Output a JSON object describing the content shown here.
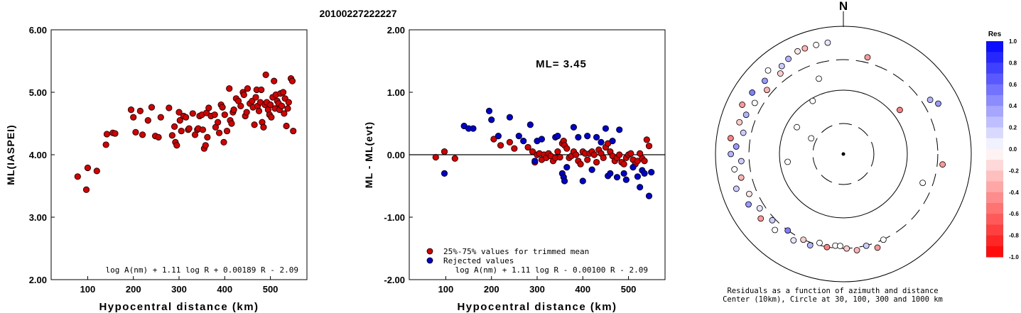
{
  "title": "20100227222227",
  "chart_data": [
    {
      "type": "scatter",
      "title": "",
      "xlabel": "Hypocentral distance (km)",
      "ylabel": "ML(IASPEI)",
      "xlim": [
        20,
        580
      ],
      "ylim": [
        2.0,
        6.0
      ],
      "x_ticks": [
        "100",
        "200",
        "300",
        "400",
        "500"
      ],
      "y_ticks": [
        "2.00",
        "3.00",
        "4.00",
        "5.00",
        "6.00"
      ],
      "formula": "log A(nm) + 1.11 log R + 0.00189 R - 2.09",
      "colors": {
        "points": "#d40000"
      },
      "series": [
        {
          "x": [
            78,
            97,
            100,
            120,
            140,
            142,
            155,
            160,
            195,
            200,
            205,
            215,
            220,
            232,
            240,
            248,
            255,
            260,
            278,
            285,
            290,
            292,
            295,
            300,
            302,
            305,
            310,
            315,
            320,
            322,
            330,
            335,
            340,
            342,
            345,
            350,
            352,
            355,
            358,
            360,
            362,
            365,
            370,
            378,
            380,
            385,
            388,
            392,
            395,
            398,
            400,
            405,
            410,
            412,
            415,
            418,
            420,
            425,
            430,
            435,
            440,
            442,
            445,
            448,
            450,
            455,
            460,
            462,
            465,
            468,
            470,
            472,
            475,
            478,
            480,
            482,
            485,
            488,
            490,
            492,
            495,
            498,
            500,
            502,
            505,
            508,
            510,
            512,
            515,
            518,
            520,
            522,
            525,
            528,
            530,
            532,
            535,
            538,
            540,
            545,
            548,
            550
          ],
          "y": [
            3.65,
            3.44,
            3.79,
            3.74,
            4.16,
            4.33,
            4.35,
            4.34,
            4.72,
            4.6,
            4.36,
            4.7,
            4.32,
            4.55,
            4.76,
            4.3,
            4.28,
            4.6,
            4.75,
            4.31,
            4.45,
            4.2,
            4.15,
            4.68,
            4.55,
            4.38,
            4.62,
            4.6,
            4.4,
            4.42,
            4.66,
            4.32,
            4.4,
            4.42,
            4.62,
            4.64,
            4.4,
            4.1,
            4.15,
            4.67,
            4.28,
            4.75,
            4.62,
            4.64,
            4.44,
            4.52,
            4.35,
            4.8,
            4.76,
            4.2,
            4.64,
            4.38,
            5.06,
            4.55,
            4.5,
            4.68,
            4.72,
            4.9,
            4.86,
            4.78,
            5.0,
            4.96,
            4.62,
            4.68,
            5.06,
            4.82,
            4.86,
            4.76,
            4.48,
            4.92,
            5.04,
            4.78,
            4.7,
            4.84,
            5.04,
            4.52,
            4.44,
            4.8,
            5.28,
            4.84,
            4.72,
            4.64,
            4.8,
            4.6,
            4.92,
            5.18,
            4.74,
            4.96,
            4.86,
            4.82,
            4.72,
            4.98,
            4.78,
            5.0,
            4.66,
            4.9,
            4.46,
            4.74,
            4.84,
            5.22,
            5.18,
            4.38
          ]
        }
      ]
    },
    {
      "type": "scatter",
      "title": "",
      "xlabel": "Hypocentral distance (km)",
      "ylabel": "ML - ML(evt)",
      "xlim": [
        20,
        580
      ],
      "ylim": [
        -2.0,
        2.0
      ],
      "x_ticks": [
        "100",
        "200",
        "300",
        "400",
        "500"
      ],
      "y_ticks": [
        "-2.00",
        "-1.00",
        "0.00",
        "1.00",
        "2.00"
      ],
      "annotation": "ML= 3.45",
      "formula": "log A(nm) + 1.11 log R - 0.00100 R - 2.09",
      "legend": {
        "position": "bottom-left",
        "entries": [
          "25%-75% values for trimmed mean",
          "Rejected values"
        ]
      },
      "colors": {
        "trimmed": "#d40000",
        "rejected": "#0000cc"
      },
      "series": [
        {
          "name": "25%-75% values for trimmed mean",
          "x": [
            78,
            97,
            120,
            205,
            220,
            240,
            250,
            280,
            290,
            295,
            300,
            305,
            310,
            315,
            320,
            325,
            330,
            335,
            340,
            345,
            350,
            355,
            358,
            360,
            365,
            370,
            375,
            380,
            385,
            390,
            395,
            400,
            405,
            410,
            415,
            420,
            425,
            430,
            435,
            440,
            445,
            450,
            455,
            460,
            465,
            470,
            475,
            480,
            485,
            490,
            495,
            500,
            505,
            510,
            515,
            520,
            525,
            530,
            535,
            540,
            545
          ],
          "y": [
            -0.04,
            0.05,
            -0.06,
            0.25,
            0.15,
            0.2,
            0.1,
            0.12,
            0.05,
            -0.12,
            0.0,
            0.02,
            -0.08,
            0.0,
            -0.05,
            0.02,
            -0.02,
            -0.1,
            -0.05,
            0.05,
            -0.04,
            0.18,
            0.22,
            0.15,
            0.1,
            -0.05,
            -0.02,
            0.05,
            0.0,
            -0.1,
            -0.15,
            0.05,
            0.02,
            -0.08,
            0.02,
            0.05,
            0.0,
            -0.12,
            0.08,
            0.02,
            -0.05,
            0.12,
            0.18,
            0.05,
            -0.02,
            -0.1,
            -0.05,
            0.0,
            -0.12,
            -0.15,
            -0.05,
            0.0,
            0.02,
            -0.08,
            -0.15,
            -0.1,
            0.02,
            -0.06,
            -0.1,
            0.24,
            0.14
          ]
        },
        {
          "name": "Rejected values",
          "x": [
            97,
            140,
            150,
            160,
            195,
            200,
            215,
            240,
            260,
            270,
            285,
            295,
            300,
            310,
            340,
            345,
            355,
            358,
            360,
            365,
            380,
            390,
            400,
            410,
            420,
            430,
            440,
            450,
            455,
            460,
            465,
            475,
            480,
            490,
            495,
            510,
            520,
            525,
            530,
            535,
            545,
            550
          ],
          "y": [
            -0.3,
            0.46,
            0.42,
            0.42,
            0.7,
            0.56,
            0.3,
            0.6,
            0.3,
            0.22,
            0.48,
            -0.1,
            0.22,
            0.25,
            0.28,
            0.3,
            -0.3,
            -0.36,
            -0.42,
            -0.2,
            0.44,
            0.28,
            -0.42,
            0.3,
            -0.24,
            0.28,
            0.2,
            0.42,
            -0.34,
            -0.3,
            0.22,
            -0.36,
            0.4,
            -0.3,
            -0.4,
            -0.2,
            -0.35,
            -0.52,
            -0.25,
            -0.3,
            -0.66,
            -0.28
          ]
        }
      ]
    },
    {
      "type": "scatter",
      "title": "N",
      "caption_lines": [
        "Residuals as a function of azimuth and distance",
        "Center (10km), Circle at 30, 100, 300 and 1000 km"
      ],
      "colorbar": {
        "title": "Res",
        "ticks": [
          "1.0",
          "0.8",
          "0.6",
          "0.4",
          "0.2",
          "0.0",
          "-0.2",
          "-0.4",
          "-0.6",
          "-0.8",
          "-1.0"
        ],
        "range": [
          -1.0,
          1.0
        ]
      },
      "colors": {
        "positive": "#0000ff",
        "negative": "#ff0000",
        "zero": "#ffffff"
      },
      "rings": [
        {
          "radius_km": 30,
          "style": "dashed"
        },
        {
          "radius_km": 100,
          "style": "solid"
        },
        {
          "radius_km": 300,
          "style": "dashed"
        },
        {
          "radius_km": 1000,
          "style": "solid"
        }
      ],
      "points": [
        {
          "az": 352,
          "r": 0.88,
          "res": 0.1
        },
        {
          "az": 346,
          "r": 0.88,
          "res": 0.0
        },
        {
          "az": 340,
          "r": 0.88,
          "res": -0.3
        },
        {
          "az": 336,
          "r": 0.88,
          "res": -0.1
        },
        {
          "az": 330,
          "r": 0.86,
          "res": 0.3
        },
        {
          "az": 325,
          "r": 0.84,
          "res": 0.2
        },
        {
          "az": 322,
          "r": 0.8,
          "res": -0.2
        },
        {
          "az": 318,
          "r": 0.88,
          "res": 0.0
        },
        {
          "az": 313,
          "r": 0.84,
          "res": 0.4
        },
        {
          "az": 310,
          "r": 0.78,
          "res": -0.3
        },
        {
          "az": 304,
          "r": 0.86,
          "res": 0.5
        },
        {
          "az": 300,
          "r": 0.8,
          "res": 0.0
        },
        {
          "az": 296,
          "r": 0.88,
          "res": -0.4
        },
        {
          "az": 292,
          "r": 0.82,
          "res": 0.3
        },
        {
          "az": 287,
          "r": 0.85,
          "res": -0.2
        },
        {
          "az": 282,
          "r": 0.8,
          "res": 0.2
        },
        {
          "az": 278,
          "r": 0.89,
          "res": -0.5
        },
        {
          "az": 274,
          "r": 0.84,
          "res": 0.4
        },
        {
          "az": 270,
          "r": 0.88,
          "res": 0.3
        },
        {
          "az": 266,
          "r": 0.8,
          "res": 0.2
        },
        {
          "az": 262,
          "r": 0.86,
          "res": 0.0
        },
        {
          "az": 257,
          "r": 0.82,
          "res": -0.3
        },
        {
          "az": 252,
          "r": 0.88,
          "res": 0.2
        },
        {
          "az": 247,
          "r": 0.8,
          "res": -0.1
        },
        {
          "az": 242,
          "r": 0.84,
          "res": 0.4
        },
        {
          "az": 237,
          "r": 0.78,
          "res": 0.1
        },
        {
          "az": 232,
          "r": 0.82,
          "res": -0.4
        },
        {
          "az": 227,
          "r": 0.76,
          "res": 0.2
        },
        {
          "az": 222,
          "r": 0.8,
          "res": 0.0
        },
        {
          "az": 216,
          "r": 0.74,
          "res": 0.5
        },
        {
          "az": 210,
          "r": 0.78,
          "res": 0.1
        },
        {
          "az": 205,
          "r": 0.74,
          "res": -0.2
        },
        {
          "az": 200,
          "r": 0.76,
          "res": 0.3
        },
        {
          "az": 195,
          "r": 0.72,
          "res": 0.0
        },
        {
          "az": 190,
          "r": 0.74,
          "res": -0.5
        },
        {
          "az": 185,
          "r": 0.72,
          "res": 0.0
        },
        {
          "az": 182,
          "r": 0.72,
          "res": 0.0
        },
        {
          "az": 178,
          "r": 0.74,
          "res": -0.2
        },
        {
          "az": 172,
          "r": 0.76,
          "res": -0.3
        },
        {
          "az": 166,
          "r": 0.74,
          "res": 0.2
        },
        {
          "az": 160,
          "r": 0.78,
          "res": -0.4
        },
        {
          "az": 155,
          "r": 0.74,
          "res": 0.0
        },
        {
          "az": 110,
          "r": 0.66,
          "res": 0.0
        },
        {
          "az": 96,
          "r": 0.78,
          "res": -0.4
        },
        {
          "az": 62,
          "r": 0.84,
          "res": 0.4
        },
        {
          "az": 58,
          "r": 0.8,
          "res": 0.3
        },
        {
          "az": 52,
          "r": 0.56,
          "res": -0.5
        },
        {
          "az": 14,
          "r": 0.78,
          "res": -0.4
        },
        {
          "az": 330,
          "r": 0.48,
          "res": 0.0
        },
        {
          "az": 300,
          "r": 0.42,
          "res": 0.0
        },
        {
          "az": 262,
          "r": 0.44,
          "res": 0.0
        },
        {
          "az": 342,
          "r": 0.62,
          "res": 0.0
        },
        {
          "az": 296,
          "r": 0.28,
          "res": 0.0
        }
      ]
    }
  ]
}
